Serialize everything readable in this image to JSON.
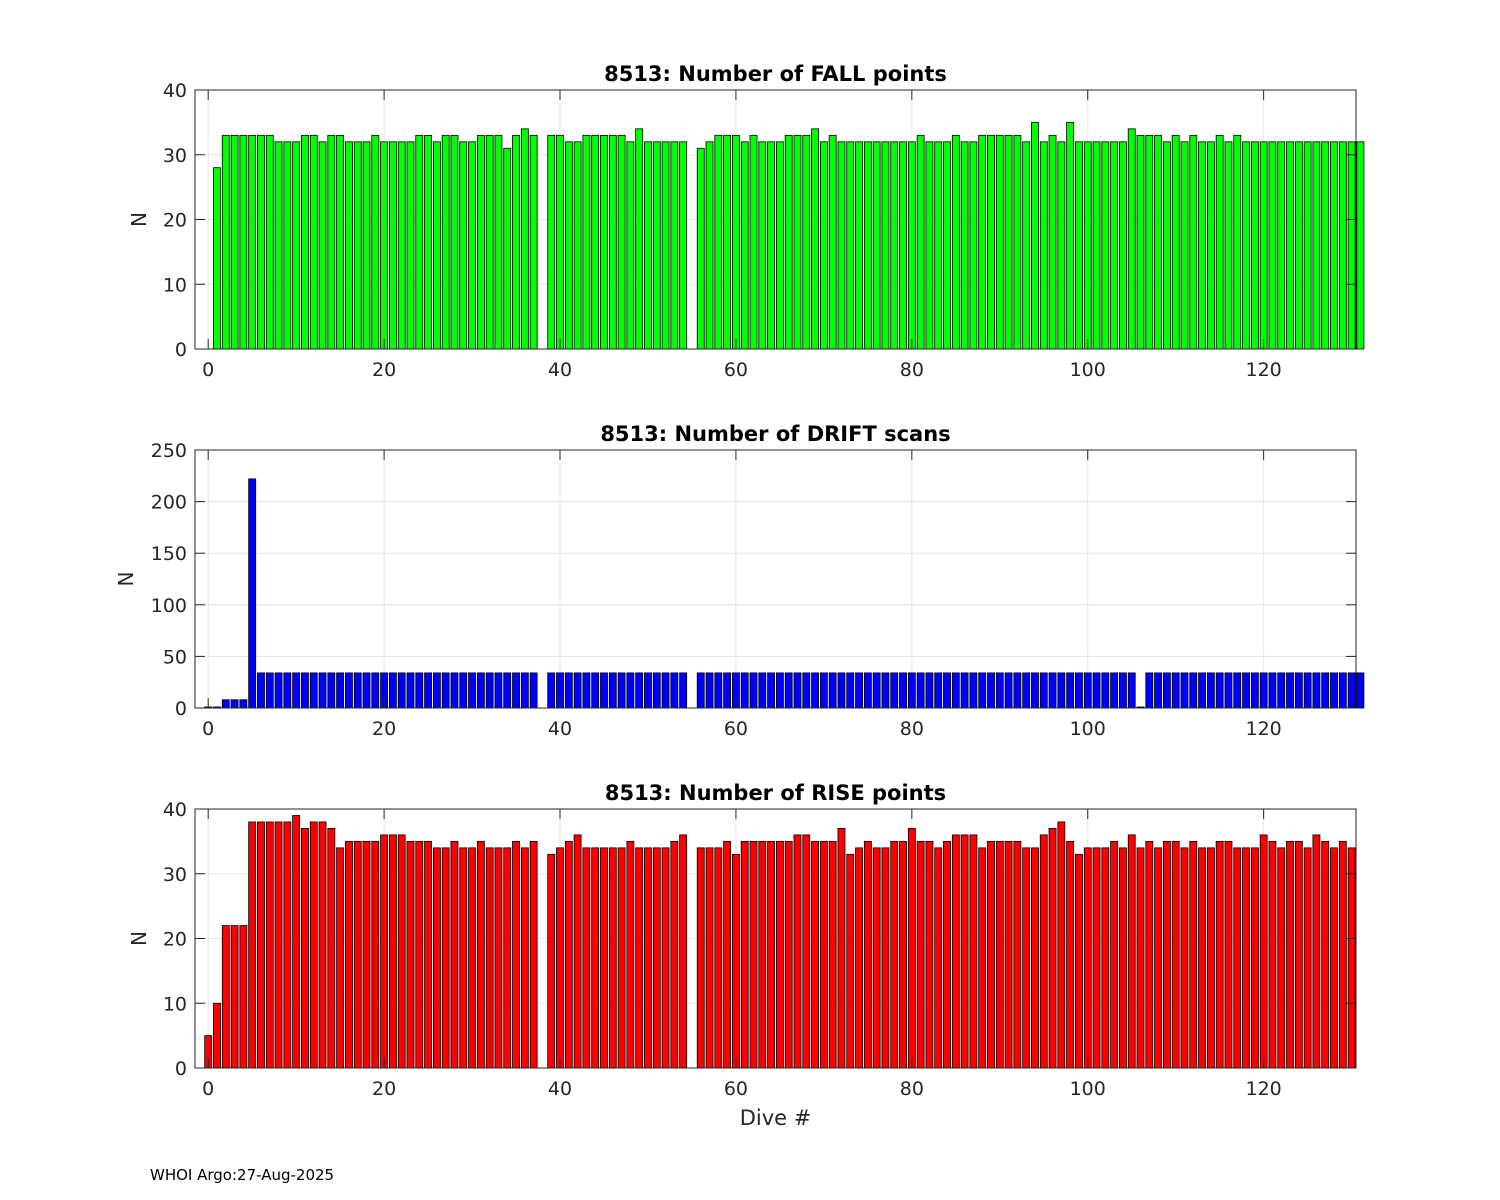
{
  "chart_data": [
    {
      "type": "bar",
      "title": "8513: Number of FALL points",
      "xlabel": "",
      "ylabel": "N",
      "color": "#00ff00",
      "xlim": [
        -1.5,
        130.5
      ],
      "ylim": [
        0,
        40
      ],
      "yticks": [
        0,
        10,
        20,
        30,
        40
      ],
      "xticks": [
        0,
        20,
        40,
        60,
        80,
        100,
        120
      ],
      "grid": true,
      "x_start": 0,
      "values": [
        null,
        28,
        33,
        33,
        33,
        33,
        33,
        33,
        32,
        32,
        32,
        33,
        33,
        32,
        33,
        33,
        32,
        32,
        32,
        33,
        32,
        32,
        32,
        32,
        33,
        33,
        32,
        33,
        33,
        32,
        32,
        33,
        33,
        33,
        31,
        33,
        34,
        33,
        null,
        33,
        33,
        32,
        32,
        33,
        33,
        33,
        33,
        33,
        32,
        34,
        32,
        32,
        32,
        32,
        32,
        null,
        31,
        32,
        33,
        33,
        33,
        32,
        33,
        32,
        32,
        32,
        33,
        33,
        33,
        34,
        32,
        33,
        32,
        32,
        32,
        32,
        32,
        32,
        32,
        32,
        32,
        33,
        32,
        32,
        32,
        33,
        32,
        32,
        33,
        33,
        33,
        33,
        33,
        32,
        35,
        32,
        33,
        32,
        35,
        32,
        32,
        32,
        32,
        32,
        32,
        34,
        33,
        33,
        33,
        32,
        33,
        32,
        33,
        32,
        32,
        33,
        32,
        33,
        32,
        32,
        32,
        32,
        32,
        32,
        32,
        32,
        32,
        32,
        32,
        32,
        32,
        32
      ]
    },
    {
      "type": "bar",
      "title": "8513: Number of DRIFT scans",
      "xlabel": "",
      "ylabel": "N",
      "color": "#0000ff",
      "xlim": [
        -1.5,
        130.5
      ],
      "ylim": [
        0,
        250
      ],
      "yticks": [
        0,
        50,
        100,
        150,
        200,
        250
      ],
      "xticks": [
        0,
        20,
        40,
        60,
        80,
        100,
        120
      ],
      "grid": true,
      "x_start": 0,
      "values": [
        1,
        1,
        8,
        8,
        8,
        222,
        34,
        34,
        34,
        34,
        34,
        34,
        34,
        34,
        34,
        34,
        34,
        34,
        34,
        34,
        34,
        34,
        34,
        34,
        34,
        34,
        34,
        34,
        34,
        34,
        34,
        34,
        34,
        34,
        34,
        34,
        34,
        34,
        null,
        34,
        34,
        34,
        34,
        34,
        34,
        34,
        34,
        34,
        34,
        34,
        34,
        34,
        34,
        34,
        34,
        null,
        34,
        34,
        34,
        34,
        34,
        34,
        34,
        34,
        34,
        34,
        34,
        34,
        34,
        34,
        34,
        34,
        34,
        34,
        34,
        34,
        34,
        34,
        34,
        34,
        34,
        34,
        34,
        34,
        34,
        34,
        34,
        34,
        34,
        34,
        34,
        34,
        34,
        34,
        34,
        34,
        34,
        34,
        34,
        34,
        34,
        34,
        34,
        34,
        34,
        34,
        1,
        34,
        34,
        34,
        34,
        34,
        34,
        34,
        34,
        34,
        34,
        34,
        34,
        34,
        34,
        34,
        34,
        34,
        34,
        34,
        34,
        34,
        34,
        34,
        34,
        34
      ]
    },
    {
      "type": "bar",
      "title": "8513: Number of RISE points",
      "xlabel": "Dive #",
      "ylabel": "N",
      "color": "#ff0000",
      "xlim": [
        -1.5,
        130.5
      ],
      "ylim": [
        0,
        40
      ],
      "yticks": [
        0,
        10,
        20,
        30,
        40
      ],
      "xticks": [
        0,
        20,
        40,
        60,
        80,
        100,
        120
      ],
      "grid": true,
      "x_start": 0,
      "values": [
        5,
        10,
        22,
        22,
        22,
        38,
        38,
        38,
        38,
        38,
        39,
        37,
        38,
        38,
        37,
        34,
        35,
        35,
        35,
        35,
        36,
        36,
        36,
        35,
        35,
        35,
        34,
        34,
        35,
        34,
        34,
        35,
        34,
        34,
        34,
        35,
        34,
        35,
        null,
        33,
        34,
        35,
        36,
        34,
        34,
        34,
        34,
        34,
        35,
        34,
        34,
        34,
        34,
        35,
        36,
        null,
        34,
        34,
        34,
        35,
        33,
        35,
        35,
        35,
        35,
        35,
        35,
        36,
        36,
        35,
        35,
        35,
        37,
        33,
        34,
        35,
        34,
        34,
        35,
        35,
        37,
        35,
        35,
        34,
        35,
        36,
        36,
        36,
        34,
        35,
        35,
        35,
        35,
        34,
        34,
        36,
        37,
        38,
        35,
        33,
        34,
        34,
        34,
        35,
        34,
        36,
        34,
        35,
        34,
        35,
        35,
        34,
        35,
        34,
        34,
        35,
        35,
        34,
        34,
        34,
        36,
        35,
        34,
        35,
        35,
        34,
        36,
        35,
        34,
        35,
        34
      ]
    }
  ],
  "footer": "WHOI Argo:27-Aug-2025"
}
